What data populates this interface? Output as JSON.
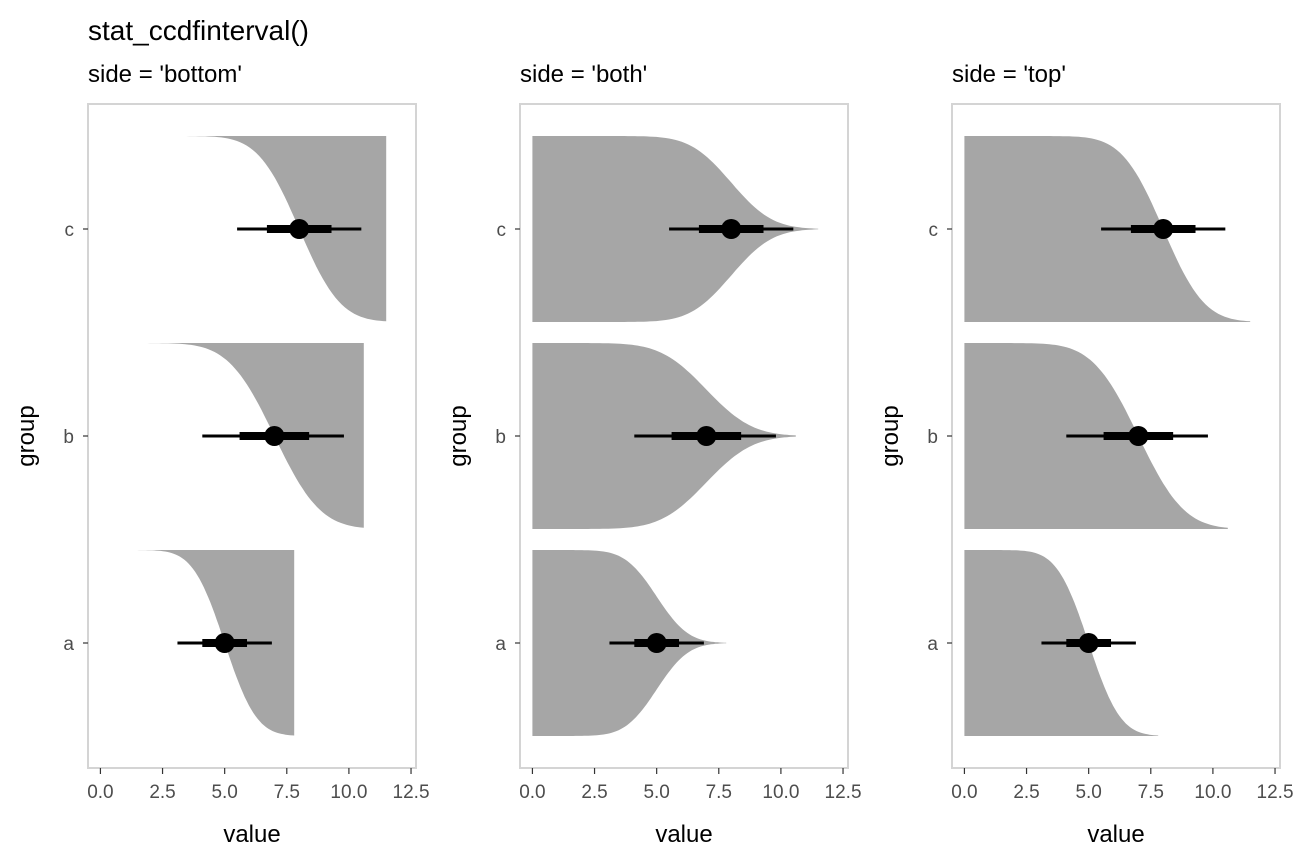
{
  "title": "stat_ccdfinterval()",
  "chart_data": {
    "type": "area",
    "xlabel": "value",
    "ylabel": "group",
    "xlim": [
      -0.5,
      12.7
    ],
    "x_ticks": [
      0,
      2.5,
      5,
      7.5,
      10,
      12.5
    ],
    "x_tick_labels": [
      "0.0",
      "2.5",
      "5.0",
      "7.5",
      "10.0",
      "12.5"
    ],
    "groups": [
      "a",
      "b",
      "c"
    ],
    "grid": false,
    "fill_color": "#a6a6a6",
    "interval_color": "#000000",
    "distributions": [
      {
        "group": "a",
        "mean": 5,
        "sd": 1,
        "x_max": 7.8
      },
      {
        "group": "b",
        "mean": 7,
        "sd": 1.45,
        "x_max": 10.6
      },
      {
        "group": "c",
        "mean": 8,
        "sd": 1.3,
        "x_max": 11.5
      }
    ],
    "panels": [
      {
        "subtitle": "side = 'bottom'",
        "side": "bottom",
        "intervals": [
          {
            "group": "a",
            "median": 5.0,
            "inner": [
              4.1,
              5.9
            ],
            "outer": [
              3.1,
              6.9
            ]
          },
          {
            "group": "b",
            "median": 7.0,
            "inner": [
              5.6,
              8.4
            ],
            "outer": [
              4.1,
              9.8
            ]
          },
          {
            "group": "c",
            "median": 8.0,
            "inner": [
              6.7,
              9.3
            ],
            "outer": [
              5.5,
              10.5
            ]
          }
        ]
      },
      {
        "subtitle": "side = 'both'",
        "side": "both",
        "intervals": [
          {
            "group": "a",
            "median": 5.0,
            "inner": [
              4.1,
              5.9
            ],
            "outer": [
              3.1,
              6.9
            ]
          },
          {
            "group": "b",
            "median": 7.0,
            "inner": [
              5.6,
              8.4
            ],
            "outer": [
              4.1,
              9.8
            ]
          },
          {
            "group": "c",
            "median": 8.0,
            "inner": [
              6.7,
              9.3
            ],
            "outer": [
              5.5,
              10.5
            ]
          }
        ]
      },
      {
        "subtitle": "side = 'top'",
        "side": "top",
        "intervals": [
          {
            "group": "a",
            "median": 5.0,
            "inner": [
              4.1,
              5.9
            ],
            "outer": [
              3.1,
              6.9
            ]
          },
          {
            "group": "b",
            "median": 7.0,
            "inner": [
              5.6,
              8.4
            ],
            "outer": [
              4.1,
              9.8
            ]
          },
          {
            "group": "c",
            "median": 8.0,
            "inner": [
              6.7,
              9.3
            ],
            "outer": [
              5.5,
              10.5
            ]
          }
        ]
      }
    ]
  }
}
